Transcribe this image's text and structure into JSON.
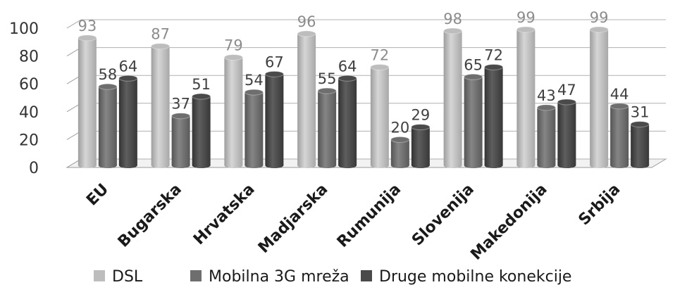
{
  "chart_data": {
    "type": "bar",
    "categories": [
      "EU",
      "Bugarska",
      "Hrvatska",
      "Madjarska",
      "Rumunija",
      "Slovenija",
      "Makedonija",
      "Srbija"
    ],
    "series": [
      {
        "name": "DSL",
        "values": [
          93,
          87,
          79,
          96,
          72,
          98,
          99,
          99
        ],
        "color": "#bdbdbd"
      },
      {
        "name": "Mobilna 3G mreža",
        "values": [
          58,
          37,
          54,
          55,
          20,
          65,
          43,
          44
        ],
        "color": "#6e6e6e"
      },
      {
        "name": "Druge mobilne konekcije",
        "values": [
          64,
          51,
          67,
          64,
          29,
          72,
          47,
          31
        ],
        "color": "#4a4a4a"
      }
    ],
    "yticks": [
      0,
      20,
      40,
      60,
      80,
      100
    ],
    "ylim": [
      0,
      100
    ],
    "grid": true,
    "style": "3d-cylinder",
    "legend_position": "bottom"
  }
}
